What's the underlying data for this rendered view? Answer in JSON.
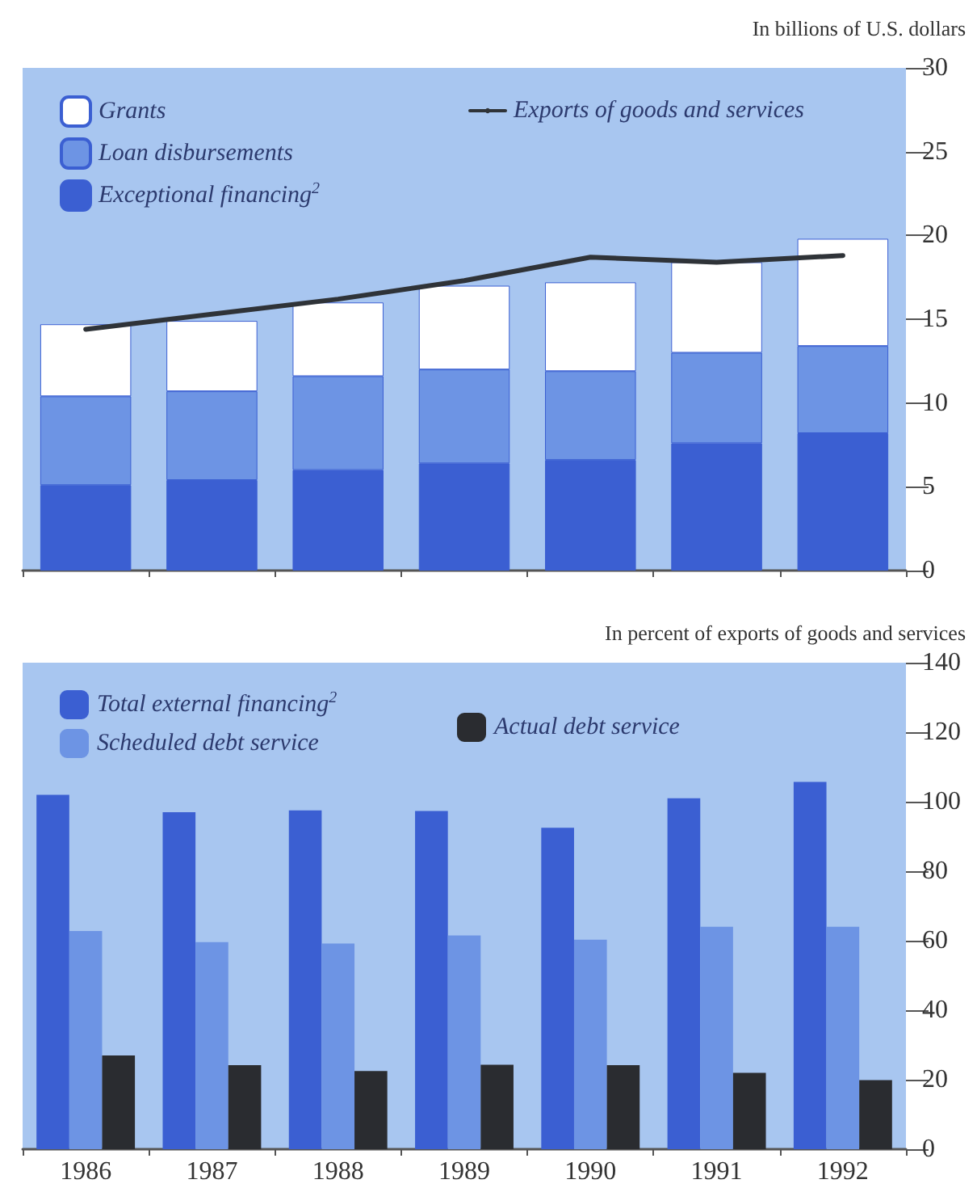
{
  "chart_data": [
    {
      "type": "bar",
      "ylabel": "In billions of U.S. dollars",
      "categories": [
        "1986",
        "1987",
        "1988",
        "1989",
        "1990",
        "1991",
        "1992"
      ],
      "stacked": true,
      "ylim": [
        0,
        30
      ],
      "yticks": [
        0,
        5,
        10,
        15,
        20,
        25,
        30
      ],
      "tick_labels": "y",
      "grid": false,
      "legend": "top",
      "series": [
        {
          "name": "Exceptional financing$^{2}$",
          "color": "#3b5fd2",
          "values": [
            5.1,
            5.4,
            6.0,
            6.4,
            6.6,
            7.6,
            8.2
          ]
        },
        {
          "name": "Loan disbursements",
          "color": "#6d94e4",
          "values": [
            5.3,
            5.3,
            5.6,
            5.6,
            5.3,
            5.4,
            5.2
          ]
        },
        {
          "name": "Grants",
          "color": "#ffffff",
          "values": [
            4.3,
            4.2,
            4.4,
            5.0,
            5.3,
            5.4,
            6.4
          ]
        },
        {
          "name": "Exports of goods and services",
          "type": "line",
          "color": "#2f3338",
          "marker": "none",
          "values": [
            14.4,
            15.3,
            16.2,
            17.3,
            18.7,
            18.4,
            18.8
          ]
        }
      ]
    },
    {
      "type": "bar",
      "ylabel": "In percent of exports of goods and services",
      "categories": [
        "1986",
        "1987",
        "1988",
        "1989",
        "1990",
        "1991",
        "1992"
      ],
      "ylim": [
        0,
        140
      ],
      "yticks": [
        0,
        20,
        40,
        60,
        80,
        100,
        120,
        140
      ],
      "grid": false,
      "legend": "top",
      "series": [
        {
          "name": "Total external financing$^{2}$",
          "color": "#3b5fd2",
          "values": [
            102,
            97,
            97.5,
            97.3,
            92.5,
            101,
            105.7
          ]
        },
        {
          "name": "Scheduled debt service",
          "color": "#6d94e4",
          "values": [
            62.8,
            59.6,
            59.2,
            61.5,
            60.3,
            64,
            64
          ]
        },
        {
          "name": "Actual debt service",
          "color": "#2a2c30",
          "values": [
            27,
            24.2,
            22.5,
            24.3,
            24.2,
            22,
            19.9
          ]
        }
      ]
    }
  ]
}
